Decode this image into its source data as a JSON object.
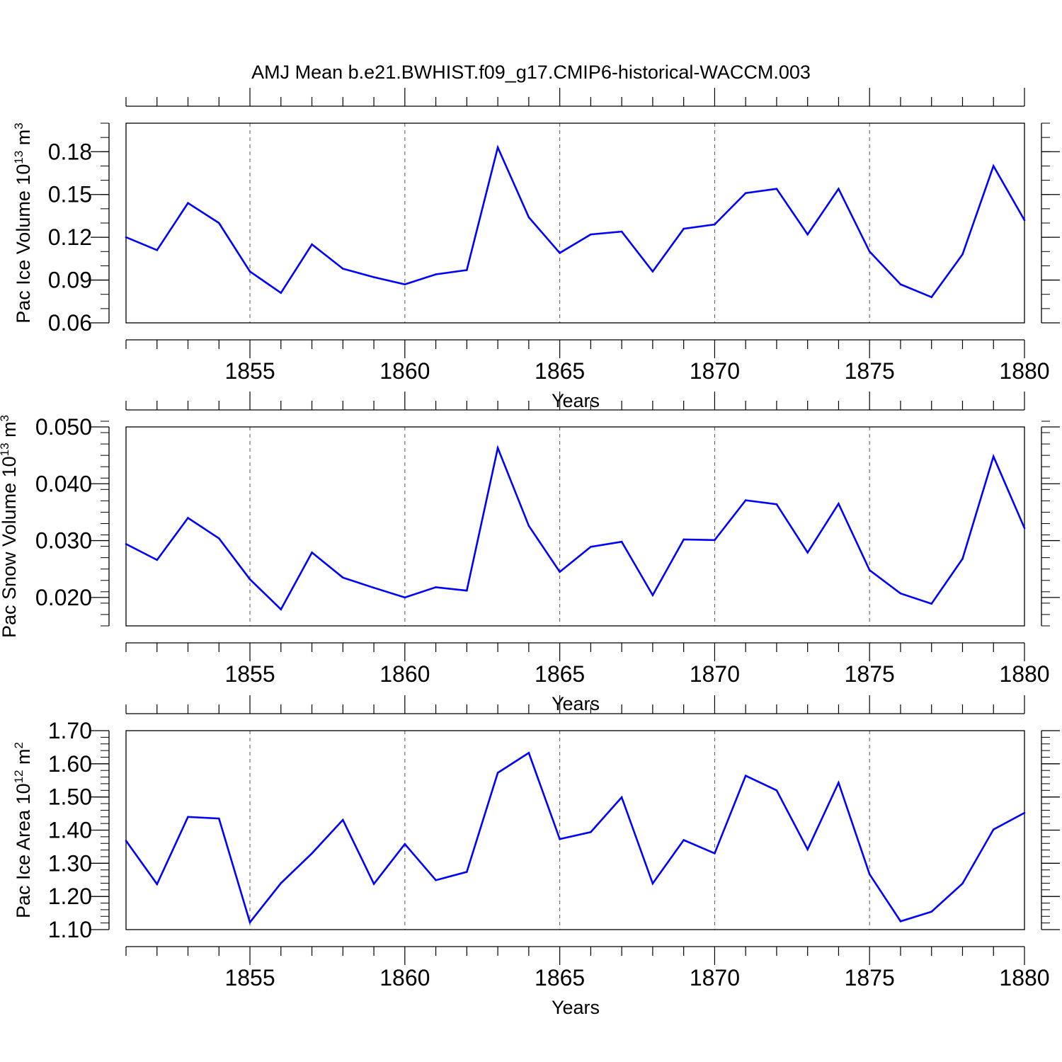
{
  "title": "AMJ Mean b.e21.BWHIST.f09_g17.CMIP6-historical-WACCM.003",
  "colors": {
    "series": "#0000ff",
    "axis": "#000000",
    "grid": "#555555"
  },
  "chart_data": [
    {
      "type": "line",
      "ylabel": {
        "main": "Pac Ice Volume 10",
        "exp": "13",
        "unit": " m",
        "unit_exp": "3"
      },
      "xlabel": "Years",
      "xlim": [
        1851,
        1880
      ],
      "ylim": [
        0.06,
        0.2
      ],
      "xticks": [
        1855,
        1860,
        1865,
        1870,
        1875,
        1880
      ],
      "xtick_labels": [
        "1855",
        "1860",
        "1865",
        "1870",
        "1875",
        "1880"
      ],
      "yticks": [
        0.06,
        0.09,
        0.12,
        0.15,
        0.18
      ],
      "ytick_labels": [
        "0.06",
        "0.09",
        "0.12",
        "0.15",
        "0.18"
      ],
      "yminor_step": 0.01,
      "grid": "vertical dashed at major x ticks",
      "x": [
        1851,
        1852,
        1853,
        1854,
        1855,
        1856,
        1857,
        1858,
        1859,
        1860,
        1861,
        1862,
        1863,
        1864,
        1865,
        1866,
        1867,
        1868,
        1869,
        1870,
        1871,
        1872,
        1873,
        1874,
        1875,
        1876,
        1877,
        1878,
        1879,
        1880
      ],
      "y": [
        0.12,
        0.111,
        0.144,
        0.13,
        0.096,
        0.081,
        0.115,
        0.098,
        0.092,
        0.087,
        0.094,
        0.097,
        0.183,
        0.134,
        0.109,
        0.122,
        0.124,
        0.096,
        0.126,
        0.129,
        0.151,
        0.154,
        0.122,
        0.154,
        0.11,
        0.087,
        0.078,
        0.108,
        0.17,
        0.132
      ]
    },
    {
      "type": "line",
      "ylabel": {
        "main": "Pac Snow Volume 10",
        "exp": "13",
        "unit": " m",
        "unit_exp": "3"
      },
      "xlabel": "Years",
      "xlim": [
        1851,
        1880
      ],
      "ylim": [
        0.015,
        0.05
      ],
      "xticks": [
        1855,
        1860,
        1865,
        1870,
        1875,
        1880
      ],
      "xtick_labels": [
        "1855",
        "1860",
        "1865",
        "1870",
        "1875",
        "1880"
      ],
      "yticks": [
        0.02,
        0.03,
        0.04,
        0.05
      ],
      "ytick_labels": [
        "0.020",
        "0.030",
        "0.040",
        "0.050"
      ],
      "yminor_step": 0.002,
      "grid": "vertical dashed at major x ticks",
      "x": [
        1851,
        1852,
        1853,
        1854,
        1855,
        1856,
        1857,
        1858,
        1859,
        1860,
        1861,
        1862,
        1863,
        1864,
        1865,
        1866,
        1867,
        1868,
        1869,
        1870,
        1871,
        1872,
        1873,
        1874,
        1875,
        1876,
        1877,
        1878,
        1879,
        1880
      ],
      "y": [
        0.0294,
        0.0266,
        0.034,
        0.0304,
        0.0232,
        0.0179,
        0.0279,
        0.0235,
        0.0217,
        0.02,
        0.0218,
        0.0212,
        0.0463,
        0.0326,
        0.0245,
        0.0289,
        0.0298,
        0.0204,
        0.0302,
        0.0301,
        0.0371,
        0.0364,
        0.0279,
        0.0365,
        0.0248,
        0.0207,
        0.0189,
        0.0268,
        0.0448,
        0.0322
      ]
    },
    {
      "type": "line",
      "ylabel": {
        "main": "Pac Ice Area 10",
        "exp": "12",
        "unit": " m",
        "unit_exp": "2"
      },
      "xlabel": "Years",
      "xlim": [
        1851,
        1880
      ],
      "ylim": [
        1.1,
        1.7
      ],
      "xticks": [
        1855,
        1860,
        1865,
        1870,
        1875,
        1880
      ],
      "xtick_labels": [
        "1855",
        "1860",
        "1865",
        "1870",
        "1875",
        "1880"
      ],
      "yticks": [
        1.1,
        1.2,
        1.3,
        1.4,
        1.5,
        1.6,
        1.7
      ],
      "ytick_labels": [
        "1.10",
        "1.20",
        "1.30",
        "1.40",
        "1.50",
        "1.60",
        "1.70"
      ],
      "yminor_step": 0.02,
      "grid": "vertical dashed at major x ticks",
      "x": [
        1851,
        1852,
        1853,
        1854,
        1855,
        1856,
        1857,
        1858,
        1859,
        1860,
        1861,
        1862,
        1863,
        1864,
        1865,
        1866,
        1867,
        1868,
        1869,
        1870,
        1871,
        1872,
        1873,
        1874,
        1875,
        1876,
        1877,
        1878,
        1879,
        1880
      ],
      "y": [
        1.368,
        1.237,
        1.44,
        1.435,
        1.122,
        1.24,
        1.33,
        1.431,
        1.238,
        1.358,
        1.249,
        1.274,
        1.573,
        1.633,
        1.373,
        1.394,
        1.499,
        1.239,
        1.37,
        1.33,
        1.564,
        1.52,
        1.342,
        1.543,
        1.267,
        1.125,
        1.154,
        1.239,
        1.402,
        1.452
      ]
    }
  ]
}
